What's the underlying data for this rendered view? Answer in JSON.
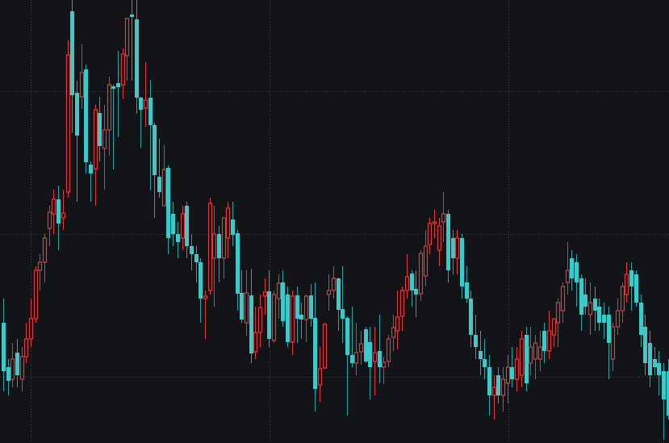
{
  "chart_data": {
    "type": "candlestick",
    "title": "",
    "xlabel": "",
    "ylabel": "",
    "ylim": [
      5.1,
      60
    ],
    "grid": true,
    "colors": {
      "background": "#131417",
      "up": "#e0393e",
      "down": "#3cc9c9",
      "down_wick": "#2fa3a3",
      "grid": "#3a3d44"
    },
    "up_style": "hollow",
    "down_style": "filled",
    "fields": [
      "open",
      "high",
      "low",
      "close"
    ],
    "candles": [
      [
        20,
        23,
        11.5,
        14
      ],
      [
        14.5,
        15.5,
        11,
        12.8
      ],
      [
        13,
        17.5,
        12,
        15.5
      ],
      [
        16.3,
        18,
        12,
        13.5
      ],
      [
        13,
        17,
        11.5,
        15.8
      ],
      [
        15.8,
        20,
        15,
        18
      ],
      [
        18,
        23,
        17,
        20.5
      ],
      [
        20.5,
        27,
        20,
        26.5
      ],
      [
        26.5,
        28.5,
        24,
        27.5
      ],
      [
        27.5,
        31,
        25,
        30.5
      ],
      [
        31.7,
        34.5,
        29.5,
        33.7
      ],
      [
        33.5,
        36.5,
        31,
        35.3
      ],
      [
        35.3,
        37,
        29,
        32.3
      ],
      [
        33,
        36.5,
        31.5,
        33.6
      ],
      [
        36.2,
        55,
        35.5,
        53.2
      ],
      [
        58.6,
        60,
        43.5,
        48.2
      ],
      [
        48.5,
        50,
        35,
        43.2
      ],
      [
        48,
        54.5,
        46.5,
        51
      ],
      [
        51.4,
        52,
        38.5,
        39.9
      ],
      [
        39.6,
        40,
        35,
        38.5
      ],
      [
        39.1,
        47,
        34.5,
        46.4
      ],
      [
        46,
        48,
        40,
        41.9
      ],
      [
        41.6,
        47,
        36.5,
        43.9
      ],
      [
        43.9,
        50.5,
        40.7,
        49.5
      ],
      [
        49.3,
        49.5,
        39,
        49
      ],
      [
        49.7,
        53.7,
        43,
        49.2
      ],
      [
        49.5,
        54,
        47.7,
        53.3
      ],
      [
        53.1,
        57.8,
        50,
        57.7
      ],
      [
        58.2,
        60,
        50,
        57.9
      ],
      [
        57.6,
        60,
        45.9,
        47.9
      ],
      [
        47.9,
        48,
        41.7,
        46.4
      ],
      [
        46.6,
        52.3,
        44.3,
        47.6
      ],
      [
        47.9,
        50.1,
        36.4,
        44.5
      ],
      [
        44.5,
        44.8,
        33,
        38.3
      ],
      [
        38.1,
        42.8,
        35.5,
        36.2
      ],
      [
        34.5,
        42,
        34.5,
        39
      ],
      [
        39.2,
        39.5,
        28.5,
        30.5
      ],
      [
        33.5,
        35,
        29.5,
        31
      ],
      [
        31,
        32.5,
        28,
        30
      ],
      [
        30.5,
        34.5,
        29,
        33.5
      ],
      [
        34.5,
        35,
        28,
        29.5
      ],
      [
        29.5,
        31,
        26.5,
        28.5
      ],
      [
        28.5,
        29.5,
        25,
        27.5
      ],
      [
        27.5,
        28,
        20,
        23
      ],
      [
        23,
        24,
        18,
        23.3
      ],
      [
        24,
        35.5,
        23.5,
        34.8
      ],
      [
        28,
        34.5,
        22,
        31
      ],
      [
        31,
        32,
        25,
        28
      ],
      [
        28,
        33,
        25.5,
        33
      ],
      [
        30.5,
        35,
        28,
        34.2
      ],
      [
        32.8,
        35,
        29.5,
        30.9
      ],
      [
        31.1,
        31.5,
        21.5,
        23.6
      ],
      [
        23.7,
        26.5,
        20,
        20.4
      ],
      [
        20,
        26.5,
        18.4,
        23.7
      ],
      [
        23.4,
        26.7,
        15,
        16.2
      ],
      [
        16.4,
        22,
        15.5,
        18.8
      ],
      [
        18.8,
        23.5,
        17,
        21.9
      ],
      [
        23.3,
        25.5,
        21,
        23.8
      ],
      [
        23.9,
        26.5,
        17,
        18
      ],
      [
        17.8,
        24,
        17.5,
        23.5
      ],
      [
        23,
        26,
        20.5,
        24.9
      ],
      [
        25,
        26.5,
        19.5,
        20.2
      ],
      [
        23.5,
        24.5,
        17,
        17.6
      ],
      [
        17.6,
        24,
        16,
        23.3
      ],
      [
        23.4,
        24.5,
        17.5,
        20.5
      ],
      [
        21,
        22.5,
        18,
        20.4
      ],
      [
        20.4,
        23.5,
        17.6,
        23.3
      ],
      [
        23.4,
        24.8,
        19.5,
        20.5
      ],
      [
        20.6,
        25,
        9,
        11.8
      ],
      [
        12.3,
        17,
        10.2,
        14.3
      ],
      [
        14.4,
        20,
        14.3,
        19.8
      ],
      [
        23.5,
        26,
        21.5,
        24
      ],
      [
        24,
        27,
        23,
        25.5
      ],
      [
        25.5,
        25.6,
        19,
        21.6
      ],
      [
        21.7,
        27,
        17.5,
        20.5
      ],
      [
        20.6,
        20.8,
        8.5,
        16
      ],
      [
        16,
        22,
        14.5,
        15
      ],
      [
        15,
        20,
        13.5,
        16.3
      ],
      [
        16.4,
        19,
        14.8,
        17.4
      ],
      [
        19.2,
        19.5,
        15,
        15.2
      ],
      [
        17.6,
        19.5,
        10.5,
        14.5
      ],
      [
        15.2,
        19.5,
        11,
        16.3
      ],
      [
        16.5,
        21,
        12.5,
        14.5
      ],
      [
        14.5,
        15.8,
        12.4,
        15.1
      ],
      [
        15.2,
        18.5,
        14.5,
        18
      ],
      [
        18.2,
        21,
        16.5,
        19.4
      ],
      [
        19,
        24,
        16.7,
        20.7
      ],
      [
        20.8,
        24.5,
        19,
        24
      ],
      [
        24,
        28.5,
        23,
        25.7
      ],
      [
        26.1,
        26.5,
        22,
        24
      ],
      [
        24.2,
        26.5,
        20.7,
        23.5
      ],
      [
        23.6,
        29,
        22.7,
        28.6
      ],
      [
        25.8,
        31.5,
        24.5,
        29.5
      ],
      [
        29.7,
        33,
        28.5,
        32.3
      ],
      [
        32.3,
        34,
        30.5,
        32.5
      ],
      [
        29,
        33,
        27,
        32
      ],
      [
        32.5,
        36.2,
        30,
        33.5
      ],
      [
        33.5,
        34,
        25,
        26.5
      ],
      [
        30.5,
        31.5,
        26,
        28
      ],
      [
        28,
        31.5,
        26,
        30.5
      ],
      [
        30.5,
        31,
        23,
        24.5
      ],
      [
        25,
        27,
        22.5,
        23
      ],
      [
        23,
        24,
        17,
        18.5
      ],
      [
        18.5,
        21,
        15.5,
        17
      ],
      [
        16.5,
        19,
        13.5,
        15.5
      ],
      [
        15.5,
        18,
        13,
        14.5
      ],
      [
        14.5,
        16,
        8.5,
        11
      ],
      [
        11,
        13.5,
        8,
        12
      ],
      [
        13.5,
        14.5,
        10,
        11
      ],
      [
        11,
        14.5,
        9,
        13
      ],
      [
        12.5,
        16,
        10,
        14.5
      ],
      [
        14.5,
        17,
        12,
        13
      ],
      [
        13,
        17,
        11.5,
        15.5
      ],
      [
        13.5,
        19,
        12,
        18
      ],
      [
        18.5,
        19.5,
        11.5,
        12.5
      ],
      [
        15,
        19.5,
        13.5,
        17
      ],
      [
        15.5,
        18.5,
        13,
        17.5
      ],
      [
        15.5,
        19,
        14,
        17
      ],
      [
        19,
        20,
        15,
        16.5
      ],
      [
        16.5,
        21.5,
        15.5,
        19
      ],
      [
        18.5,
        20.5,
        17,
        20.5
      ],
      [
        20,
        23,
        17,
        22.5
      ],
      [
        21.5,
        25,
        20,
        24.5
      ],
      [
        25,
        30,
        23.5,
        26.5
      ],
      [
        28,
        29,
        24,
        25.5
      ],
      [
        27.5,
        28.5,
        22,
        25
      ],
      [
        25.5,
        26,
        19,
        21
      ],
      [
        23.5,
        25.5,
        21,
        22
      ],
      [
        21,
        25,
        18.5,
        22.5
      ],
      [
        23,
        24.5,
        19,
        21.5
      ],
      [
        22,
        23,
        19,
        20
      ],
      [
        21,
        22.5,
        18,
        20
      ],
      [
        21,
        22,
        13,
        17.5
      ],
      [
        15.5,
        20,
        14,
        19.5
      ],
      [
        19.5,
        23,
        18.5,
        21.5
      ],
      [
        21.5,
        25,
        20,
        24.5
      ],
      [
        23.5,
        27.5,
        22.5,
        26
      ],
      [
        26.5,
        27.5,
        21.5,
        24.5
      ],
      [
        26,
        26.5,
        22,
        22.5
      ],
      [
        22.5,
        23.5,
        17,
        18.5
      ],
      [
        19.5,
        21,
        13.5,
        15
      ],
      [
        17.5,
        19,
        12,
        13.5
      ],
      [
        15.5,
        17,
        13.5,
        14.5
      ],
      [
        15,
        16.5,
        11,
        13.5
      ],
      [
        14,
        15,
        5.5,
        10.5
      ],
      [
        14,
        15.5,
        8,
        8.5
      ]
    ]
  }
}
